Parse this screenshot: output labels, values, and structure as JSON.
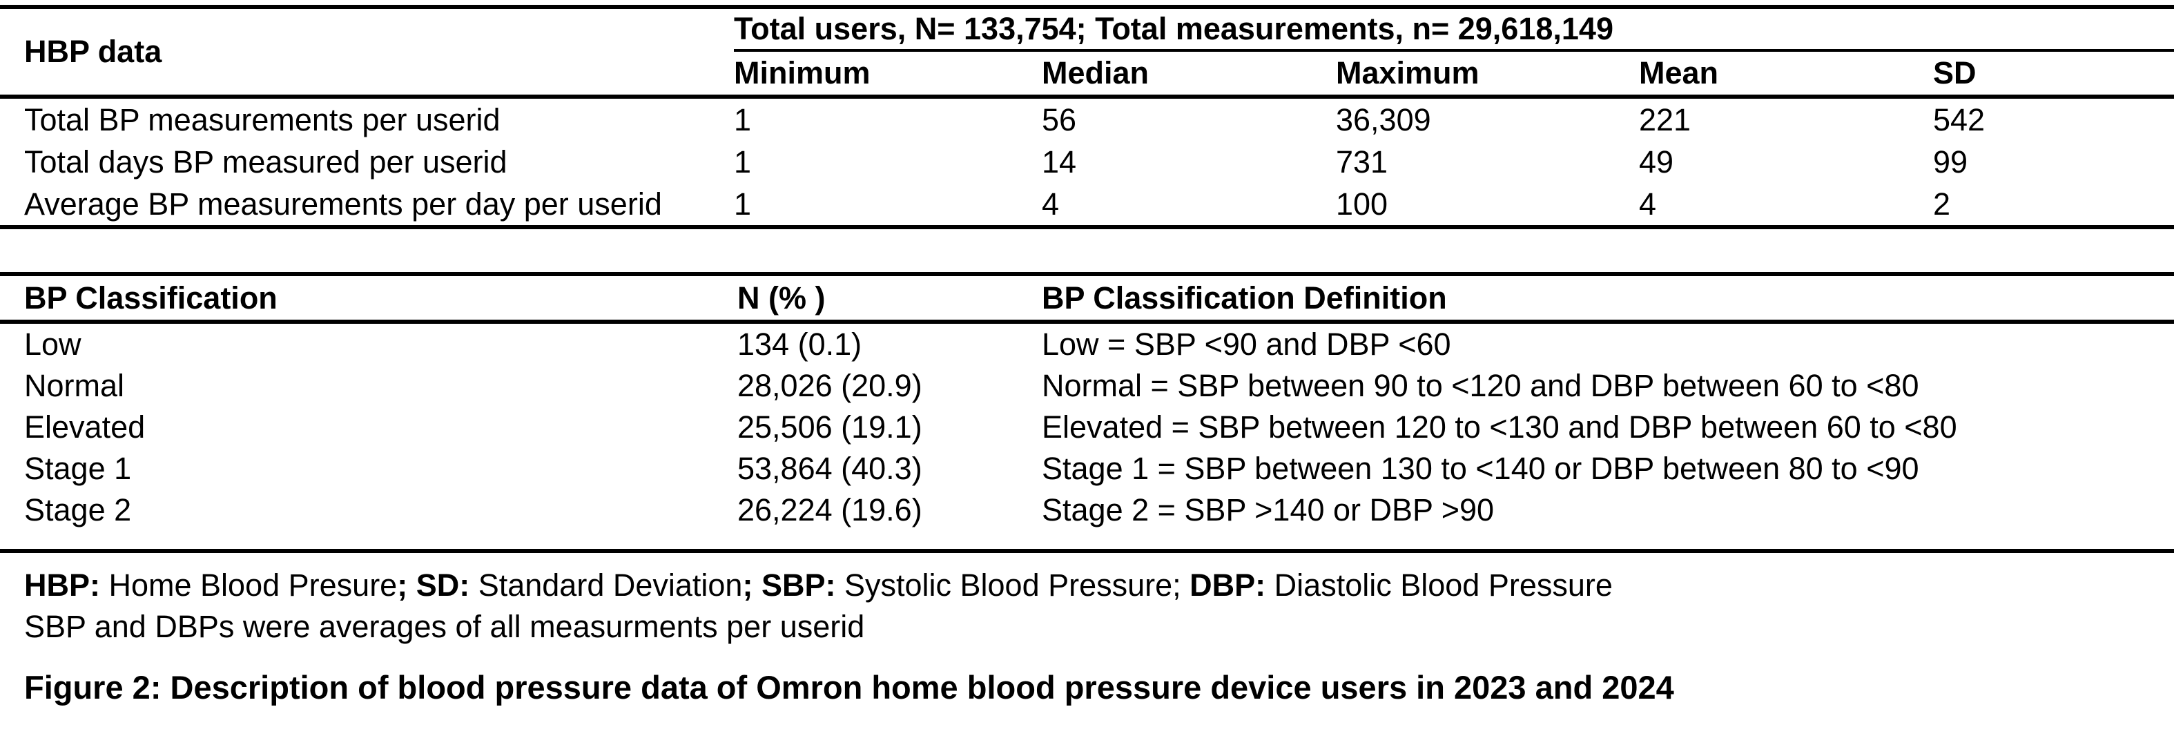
{
  "colors": {
    "text": "#000000",
    "background": "#ffffff",
    "rule": "#000000"
  },
  "table1": {
    "corner_label": "HBP data",
    "span_header": "Total users, N= 133,754; Total measurements, n= 29,618,149",
    "columns": [
      "Minimum",
      "Median",
      "Maximum",
      "Mean",
      "SD"
    ],
    "rows": [
      {
        "label": "Total BP measurements per userid",
        "values": [
          "1",
          "56",
          "36,309",
          "221",
          "542"
        ]
      },
      {
        "label": "Total days BP measured per userid",
        "values": [
          "1",
          "14",
          "731",
          "49",
          "99"
        ]
      },
      {
        "label": "Average BP measurements per day per userid",
        "values": [
          "1",
          "4",
          "100",
          "4",
          "2"
        ]
      }
    ]
  },
  "table2": {
    "columns": [
      "BP Classification",
      "N (% )",
      "BP Classification Definition"
    ],
    "rows": [
      {
        "label": "Low",
        "n_pct": "134 (0.1)",
        "definition": "Low = SBP <90 and DBP <60"
      },
      {
        "label": "Normal",
        "n_pct": "28,026 (20.9)",
        "definition": "Normal = SBP between 90 to <120 and DBP between 60 to <80"
      },
      {
        "label": "Elevated",
        "n_pct": "25,506 (19.1)",
        "definition": "Elevated = SBP between 120 to <130 and DBP between 60 to <80"
      },
      {
        "label": "Stage 1",
        "n_pct": "53,864 (40.3)",
        "definition": "Stage 1 = SBP between 130 to <140 or DBP between 80 to <90"
      },
      {
        "label": "Stage 2",
        "n_pct": "26,224 (19.6)",
        "definition": "Stage 2 = SBP >140 or DBP >90"
      }
    ]
  },
  "footnotes": {
    "hbp_label": "HBP:",
    "hbp_text": " Home Blood Presure",
    "sd_label": "; SD:",
    "sd_text": " Standard Deviation",
    "sbp_label": "; SBP:",
    "sbp_text": " Systolic Blood Pressure; ",
    "dbp_label": "DBP:",
    "dbp_text": " Diastolic Blood Pressure",
    "line2": "SBP and DBPs were averages of all measurments per userid"
  },
  "caption": "Figure 2: Description of blood pressure data of Omron home blood pressure device users in 2023 and 2024"
}
